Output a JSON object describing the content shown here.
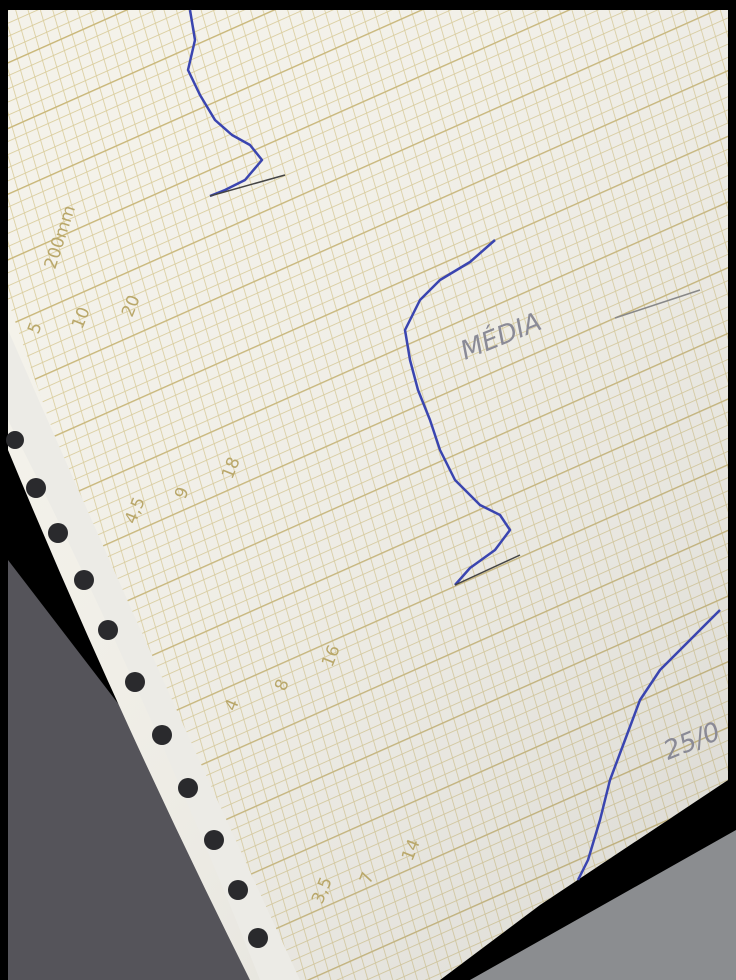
{
  "scale_columns": [
    [
      "5",
      "10",
      "20",
      "200mm"
    ],
    [
      "4,5",
      "9",
      "18"
    ],
    [
      "4",
      "8",
      "16"
    ],
    [
      "3,5",
      "7",
      "14"
    ]
  ],
  "handwriting": [
    "MÉDIA",
    "25/0"
  ]
}
